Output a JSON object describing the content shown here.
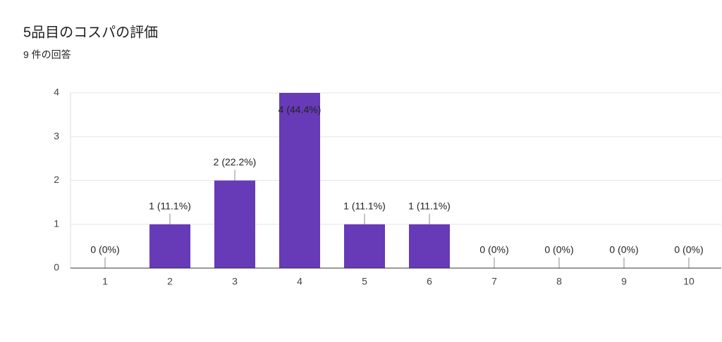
{
  "chart_data": {
    "type": "bar",
    "title": "5品目のコスパの評価",
    "subtitle": "9 件の回答",
    "categories": [
      "1",
      "2",
      "3",
      "4",
      "5",
      "6",
      "7",
      "8",
      "9",
      "10"
    ],
    "values": [
      0,
      1,
      2,
      4,
      1,
      1,
      0,
      0,
      0,
      0
    ],
    "value_labels": [
      "0 (0%)",
      "1 (11.1%)",
      "2 (22.2%)",
      "4 (44.4%)",
      "1 (11.1%)",
      "1 (11.1%)",
      "0 (0%)",
      "0 (0%)",
      "0 (0%)",
      "0 (0%)"
    ],
    "color": "#673ab7",
    "ylim": [
      0,
      4
    ],
    "yticks": [
      0,
      1,
      2,
      3,
      4
    ],
    "grid": true
  }
}
